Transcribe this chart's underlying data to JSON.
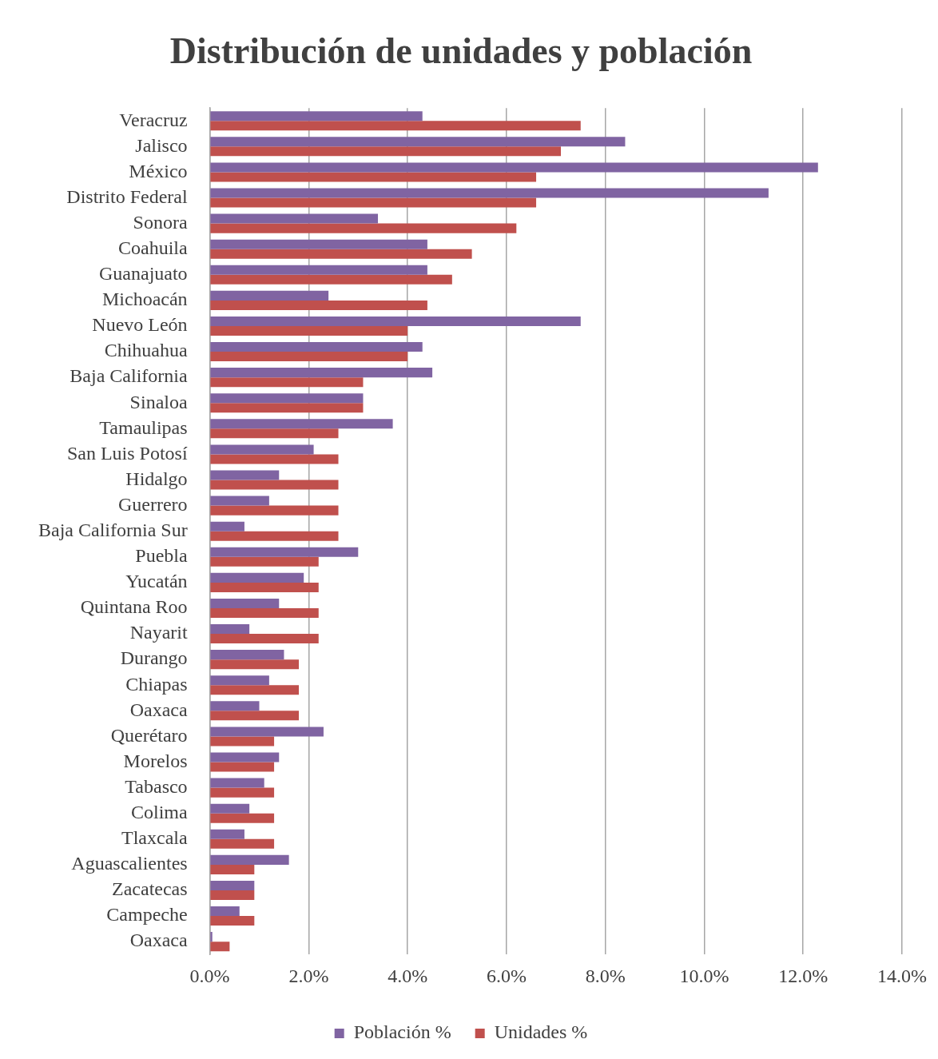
{
  "chart_data": {
    "type": "bar",
    "orientation": "horizontal",
    "title": "Distribución de unidades y población",
    "categories": [
      "Veracruz",
      "Jalisco",
      "México",
      "Distrito Federal",
      "Sonora",
      "Coahuila",
      "Guanajuato",
      "Michoacán",
      "Nuevo León",
      "Chihuahua",
      "Baja California",
      "Sinaloa",
      "Tamaulipas",
      "San Luis Potosí",
      "Hidalgo",
      "Guerrero",
      "Baja California Sur",
      "Puebla",
      "Yucatán",
      "Quintana Roo",
      "Nayarit",
      "Durango",
      "Chiapas",
      "Oaxaca",
      "Querétaro",
      "Morelos",
      "Tabasco",
      "Colima",
      "Tlaxcala",
      "Aguascalientes",
      "Zacatecas",
      "Campeche",
      "Oaxaca"
    ],
    "series": [
      {
        "name": "Población %",
        "color": "#8064a2",
        "values": [
          4.3,
          8.4,
          12.3,
          11.3,
          3.4,
          4.4,
          4.4,
          2.4,
          7.5,
          4.3,
          4.5,
          3.1,
          3.7,
          2.1,
          1.4,
          1.2,
          0.7,
          3.0,
          1.9,
          1.4,
          0.8,
          1.5,
          1.2,
          1.0,
          2.3,
          1.4,
          1.1,
          0.8,
          0.7,
          1.6,
          0.9,
          0.6,
          0.05
        ]
      },
      {
        "name": "Unidades %",
        "color": "#c0504d",
        "values": [
          7.5,
          7.1,
          6.6,
          6.6,
          6.2,
          5.3,
          4.9,
          4.4,
          4.0,
          4.0,
          3.1,
          3.1,
          2.6,
          2.6,
          2.6,
          2.6,
          2.6,
          2.2,
          2.2,
          2.2,
          2.2,
          1.8,
          1.8,
          1.8,
          1.3,
          1.3,
          1.3,
          1.3,
          1.3,
          0.9,
          0.9,
          0.9,
          0.4
        ]
      }
    ],
    "xlim": [
      0,
      14
    ],
    "xticks": [
      {
        "value": 0,
        "label": "0.0%"
      },
      {
        "value": 2,
        "label": "2.0%"
      },
      {
        "value": 4,
        "label": "4.0%"
      },
      {
        "value": 6,
        "label": "6.0%"
      },
      {
        "value": 8,
        "label": "8.0%"
      },
      {
        "value": 10,
        "label": "10.0%"
      },
      {
        "value": 12,
        "label": "12.0%"
      },
      {
        "value": 14,
        "label": "14.0%"
      }
    ],
    "grid": "x",
    "legend": "bottom"
  }
}
